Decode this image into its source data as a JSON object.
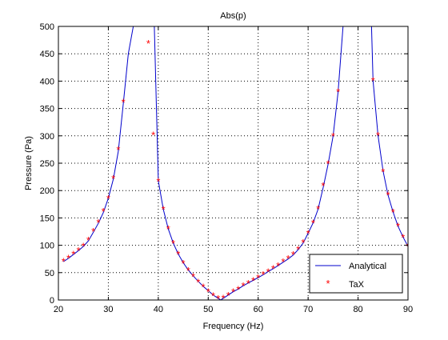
{
  "chart_data": {
    "type": "line",
    "title": "Abs(p)",
    "xlabel": "Frequency (Hz)",
    "ylabel": "Pressure (Pa)",
    "xlim": [
      20,
      90
    ],
    "ylim": [
      0,
      500
    ],
    "grid": true,
    "grid_style": "dotted",
    "legend_position": "bottom-right",
    "x_ticks": [
      20,
      30,
      40,
      50,
      60,
      70,
      80,
      90
    ],
    "y_ticks": [
      0,
      50,
      100,
      150,
      200,
      250,
      300,
      350,
      400,
      450,
      500
    ],
    "series": [
      {
        "name": "Analytical",
        "style": "line",
        "color": "#0000cc",
        "x": [
          21,
          22,
          23,
          24,
          25,
          26,
          27,
          28,
          29,
          30,
          31,
          32,
          33,
          34,
          35,
          36,
          36.8,
          39.2,
          40,
          41,
          42,
          43,
          44,
          45,
          46,
          47,
          48,
          49,
          50,
          51,
          52,
          52.5,
          53,
          54,
          55,
          56,
          57,
          58,
          59,
          60,
          61,
          62,
          63,
          64,
          65,
          66,
          67,
          68,
          69,
          70,
          71,
          72,
          73,
          74,
          75,
          76,
          77,
          77.5,
          82.7,
          83,
          84,
          85,
          86,
          87,
          88,
          89,
          90
        ],
        "y": [
          70,
          76,
          83,
          90,
          98,
          108,
          124,
          140,
          160,
          186,
          221,
          272,
          360,
          450,
          500,
          500,
          500,
          500,
          218,
          166,
          130,
          104,
          84,
          68,
          55,
          44,
          34,
          25,
          17,
          9,
          3,
          0,
          3,
          9,
          15,
          20,
          26,
          31,
          36,
          41,
          46,
          52,
          57,
          63,
          69,
          75,
          82,
          92,
          104,
          122,
          141,
          166,
          205,
          248,
          300,
          380,
          500,
          500,
          500,
          401,
          301,
          236,
          192,
          161,
          135,
          115,
          98
        ]
      },
      {
        "name": "TaX",
        "style": "marker",
        "marker": "*",
        "color": "#ff0000",
        "x": [
          21,
          22,
          23,
          24,
          25,
          26,
          27,
          28,
          29,
          30,
          31,
          32,
          33,
          38,
          39,
          40,
          41,
          42,
          43,
          44,
          45,
          46,
          47,
          48,
          49,
          50,
          51,
          52,
          53,
          54,
          55,
          56,
          57,
          58,
          59,
          60,
          61,
          62,
          63,
          64,
          65,
          66,
          67,
          68,
          69,
          70,
          71,
          72,
          73,
          74,
          75,
          76,
          83,
          84,
          85,
          86,
          87,
          88,
          89,
          90
        ],
        "y": [
          71,
          77,
          84,
          91,
          99,
          110,
          126,
          142,
          162,
          186,
          222,
          275,
          362,
          469,
          302,
          217,
          166,
          130,
          104,
          84,
          67,
          54,
          43,
          33,
          24,
          15,
          8,
          3,
          4,
          9,
          15,
          20,
          26,
          31,
          36,
          41,
          47,
          52,
          58,
          63,
          70,
          76,
          83,
          93,
          105,
          122,
          141,
          167,
          209,
          249,
          300,
          381,
          401,
          301,
          235,
          192,
          161,
          135,
          115,
          99
        ]
      }
    ]
  }
}
